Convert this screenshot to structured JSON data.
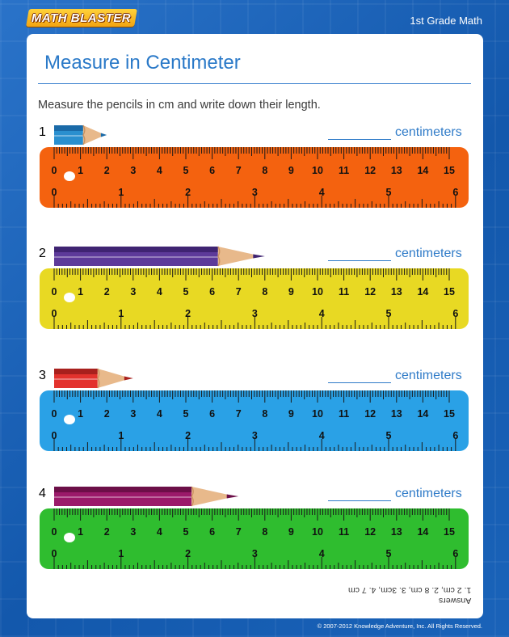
{
  "header": {
    "logo_text": "MATH BLASTER",
    "grade_label": "1st Grade Math"
  },
  "worksheet": {
    "title": "Measure in Centimeter",
    "instructions": "Measure the pencils in cm and write down their length."
  },
  "ruler_scale": {
    "cm_labels": [
      "0",
      "1",
      "2",
      "3",
      "4",
      "5",
      "6",
      "7",
      "8",
      "9",
      "10",
      "11",
      "12",
      "13",
      "14",
      "15"
    ],
    "inch_labels": [
      "0",
      "1",
      "2",
      "3",
      "4",
      "5",
      "6"
    ]
  },
  "problems": [
    {
      "number": "1",
      "unit": "centimeters",
      "ruler_color": "#f4620f",
      "pencil_color": "#2a8fcf",
      "pencil_dark": "#1a6aa8",
      "pencil_length_cm": 2
    },
    {
      "number": "2",
      "unit": "centimeters",
      "ruler_color": "#e8d923",
      "pencil_color": "#5d3a9a",
      "pencil_dark": "#3f2472",
      "pencil_length_cm": 8
    },
    {
      "number": "3",
      "unit": "centimeters",
      "ruler_color": "#2aa1e6",
      "pencil_color": "#e3322d",
      "pencil_dark": "#a8201d",
      "pencil_length_cm": 3
    },
    {
      "number": "4",
      "unit": "centimeters",
      "ruler_color": "#2fbd2f",
      "pencil_color": "#9b1a6a",
      "pencil_dark": "#6c0f48",
      "pencil_length_cm": 7
    }
  ],
  "footer": {
    "answers_heading": "Answers",
    "answers_text": "1. 2 cm, 2. 8 cm, 3. 3cm, 4. 7 cm",
    "copyright": "© 2007-2012 Knowledge Adventure, Inc. All Rights Reserved."
  }
}
